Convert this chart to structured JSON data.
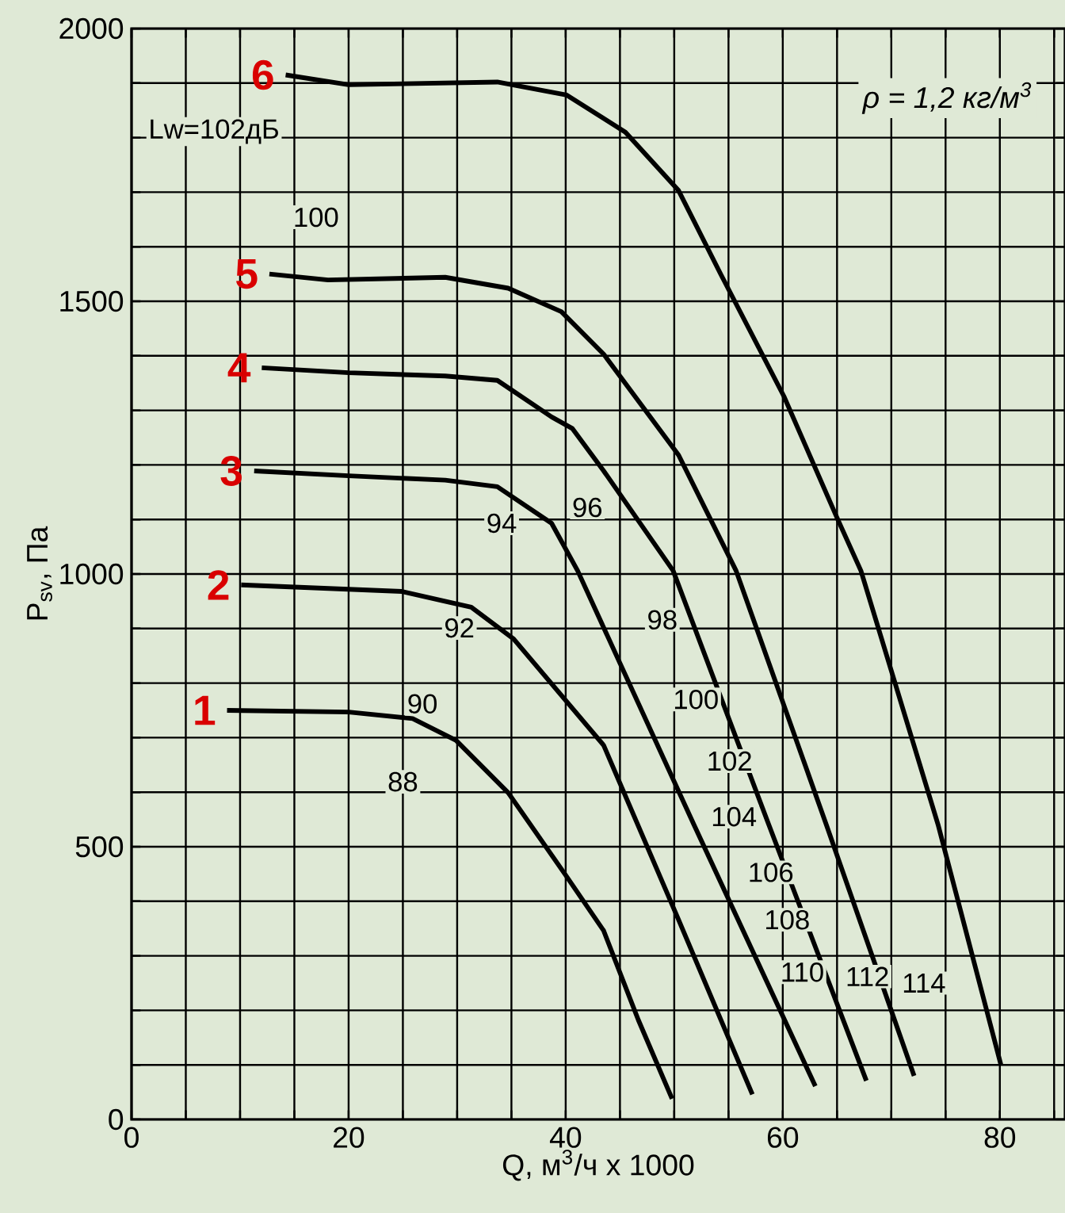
{
  "chart_data": {
    "type": "line",
    "xlabel": "Q, м$^{3}$/ч x 1000",
    "ylabel": "P$_{sv}$, Па",
    "xlim": [
      0,
      86
    ],
    "ylim": [
      0,
      2000
    ],
    "xticks": [
      0,
      {
        "value": 5,
        "label": null
      },
      {
        "value": 10,
        "label": null
      },
      {
        "value": 15,
        "label": null
      },
      20,
      {
        "value": 25,
        "label": null
      },
      {
        "value": 30,
        "label": null
      },
      {
        "value": 35,
        "label": null
      },
      40,
      {
        "value": 45,
        "label": null
      },
      {
        "value": 50,
        "label": null
      },
      {
        "value": 55,
        "label": null
      },
      60,
      {
        "value": 65,
        "label": null
      },
      {
        "value": 70,
        "label": null
      },
      {
        "value": 75,
        "label": null
      },
      80,
      {
        "value": 85,
        "label": null
      }
    ],
    "yticks": [
      0,
      {
        "value": 100,
        "label": null
      },
      {
        "value": 200,
        "label": null
      },
      {
        "value": 300,
        "label": null
      },
      {
        "value": 400,
        "label": null
      },
      500,
      {
        "value": 600,
        "label": null
      },
      {
        "value": 700,
        "label": null
      },
      {
        "value": 800,
        "label": null
      },
      {
        "value": 900,
        "label": null
      },
      1000,
      {
        "value": 1100,
        "label": null
      },
      {
        "value": 1200,
        "label": null
      },
      {
        "value": 1300,
        "label": null
      },
      {
        "value": 1400,
        "label": null
      },
      1500,
      {
        "value": 1600,
        "label": null
      },
      {
        "value": 1700,
        "label": null
      },
      {
        "value": 1800,
        "label": null
      },
      {
        "value": 1900,
        "label": null
      },
      2000
    ],
    "grid": true,
    "marker": "none",
    "line_style": "solid",
    "series": [
      {
        "name": "1",
        "color": "#000000",
        "x": [
          8.8,
          20,
          25.9,
          29.9,
          34.7,
          40.1,
          43.5,
          46.7,
          49.8
        ],
        "values": [
          750,
          747,
          735,
          695,
          599,
          445,
          346,
          182,
          38
        ]
      },
      {
        "name": "2",
        "color": "#000000",
        "x": [
          10.1,
          24.9,
          31.3,
          35.2,
          43.5,
          50.4,
          57.2
        ],
        "values": [
          980,
          968,
          939,
          881,
          686,
          366,
          46
        ]
      },
      {
        "name": "3",
        "color": "#000000",
        "x": [
          11.3,
          20,
          28.9,
          33.7,
          38.7,
          41.1,
          51.8,
          63
        ],
        "values": [
          1189,
          1180,
          1172,
          1160,
          1093,
          1006,
          541,
          61
        ]
      },
      {
        "name": "4",
        "color": "#000000",
        "x": [
          12,
          20,
          28.9,
          33.7,
          38.7,
          40.6,
          43.5,
          49.9,
          58.7,
          67.7
        ],
        "values": [
          1378,
          1369,
          1363,
          1355,
          1288,
          1267,
          1189,
          1006,
          541,
          71
        ]
      },
      {
        "name": "5",
        "color": "#000000",
        "x": [
          12.7,
          18.1,
          28.9,
          34.7,
          39.6,
          43.5,
          50.4,
          55.7,
          64,
          72.1
        ],
        "values": [
          1550,
          1539,
          1544,
          1524,
          1481,
          1403,
          1218,
          1006,
          541,
          80
        ]
      },
      {
        "name": "6",
        "color": "#000000",
        "x": [
          14.2,
          20,
          33.7,
          40.1,
          45.5,
          50.4,
          54.3,
          60.1,
          65,
          67.2,
          74.3,
          80.1
        ],
        "values": [
          1915,
          1897,
          1902,
          1878,
          1810,
          1703,
          1549,
          1326,
          1103,
          1006,
          541,
          100
        ]
      }
    ],
    "annotations": [
      "ρ = 1,2 кг/м$^{3}$",
      "Lw=102дБ",
      "100",
      "94",
      "96",
      "98",
      "100",
      "102",
      "104",
      "106",
      "108",
      "110",
      "112",
      "114",
      "92",
      "90",
      "88"
    ]
  }
}
